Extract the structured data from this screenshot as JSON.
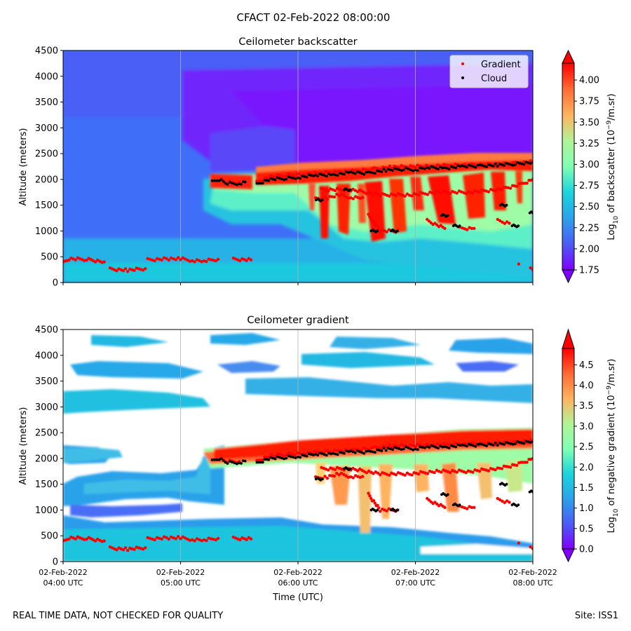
{
  "figure": {
    "suptitle": "CFACT 02-Feb-2022 08:00:00",
    "footer_left": "REAL TIME DATA, NOT CHECKED FOR QUALITY",
    "footer_right": "Site: ISS1"
  },
  "colors": {
    "colormap": "rainbow",
    "gradient_marker": "#ff0000",
    "cloud_marker": "#000000",
    "gridline": "#b0b0b0"
  },
  "chart_data": [
    {
      "type": "heatmap",
      "title": "Ceilometer backscatter",
      "ylabel": "Altitude (meters)",
      "xlabel": "",
      "xlim": [
        4,
        8
      ],
      "ylim": [
        0,
        4500
      ],
      "yticks": [
        0,
        500,
        1000,
        1500,
        2000,
        2500,
        3000,
        3500,
        4000,
        4500
      ],
      "xtick_labels_shown": false,
      "grid": "vertical",
      "colorbar": {
        "label_parts": [
          "Log",
          "10",
          " of backscatter (10",
          "−9",
          "/m.sr)"
        ],
        "min": 1.75,
        "max": 4.2,
        "ticks": [
          "1.75",
          "2.00",
          "2.25",
          "2.50",
          "2.75",
          "3.00",
          "3.25",
          "3.50",
          "3.75",
          "4.00"
        ],
        "extend": "both"
      },
      "legend": {
        "placement": "top-right",
        "entries": [
          {
            "label": "Gradient",
            "color": "#ff0000"
          },
          {
            "label": "Cloud",
            "color": "#000000"
          }
        ]
      }
    },
    {
      "type": "heatmap",
      "title": "Ceilometer gradient",
      "ylabel": "Altitude (meters)",
      "xlabel": "Time (UTC)",
      "xlim": [
        4,
        8
      ],
      "ylim": [
        0,
        4500
      ],
      "yticks": [
        0,
        500,
        1000,
        1500,
        2000,
        2500,
        3000,
        3500,
        4000,
        4500
      ],
      "xticks": [
        4,
        5,
        6,
        7,
        8
      ],
      "xtick_labels": [
        [
          "02-Feb-2022",
          "04:00 UTC"
        ],
        [
          "02-Feb-2022",
          "05:00 UTC"
        ],
        [
          "02-Feb-2022",
          "06:00 UTC"
        ],
        [
          "02-Feb-2022",
          "07:00 UTC"
        ],
        [
          "02-Feb-2022",
          "08:00 UTC"
        ]
      ],
      "grid": "vertical",
      "colorbar": {
        "label_parts": [
          "Log",
          "10",
          " of negative gradient (10",
          "−9",
          "/m.sr)"
        ],
        "min": 0.0,
        "max": 4.9,
        "ticks": [
          "0.0",
          "0.5",
          "1.0",
          "1.5",
          "2.0",
          "2.5",
          "3.0",
          "3.5",
          "4.0",
          "4.5"
        ],
        "extend": "both"
      }
    }
  ],
  "series": {
    "cloud_base": {
      "name": "Cloud",
      "segments": [
        [
          [
            5.27,
            1950
          ],
          [
            5.33,
            2000
          ],
          [
            5.4,
            1920
          ],
          [
            5.5,
            1920
          ],
          [
            5.55,
            1950
          ]
        ],
        [
          [
            5.65,
            1900
          ],
          [
            5.75,
            2000
          ],
          [
            5.9,
            2020
          ],
          [
            6.0,
            2040
          ],
          [
            6.15,
            2080
          ],
          [
            6.3,
            2090
          ],
          [
            6.45,
            2130
          ],
          [
            6.6,
            2120
          ],
          [
            6.75,
            2180
          ],
          [
            6.9,
            2200
          ],
          [
            7.0,
            2190
          ],
          [
            7.1,
            2230
          ],
          [
            7.25,
            2220
          ],
          [
            7.4,
            2250
          ],
          [
            7.55,
            2260
          ],
          [
            7.7,
            2280
          ],
          [
            7.85,
            2300
          ],
          [
            8.0,
            2330
          ]
        ]
      ],
      "isolated": [
        [
          6.18,
          1600
        ],
        [
          6.42,
          1800
        ],
        [
          6.65,
          1000
        ],
        [
          6.82,
          1000
        ],
        [
          7.25,
          1300
        ],
        [
          7.35,
          1100
        ],
        [
          7.75,
          1500
        ],
        [
          7.85,
          1100
        ],
        [
          8.0,
          1350
        ]
      ]
    },
    "gradient": {
      "name": "Gradient",
      "segments": [
        [
          [
            4.0,
            380
          ],
          [
            4.05,
            460
          ],
          [
            4.2,
            450
          ],
          [
            4.35,
            400
          ]
        ],
        [
          [
            4.4,
            260
          ],
          [
            4.55,
            240
          ],
          [
            4.7,
            270
          ]
        ],
        [
          [
            4.72,
            440
          ],
          [
            4.9,
            460
          ],
          [
            5.0,
            460
          ],
          [
            5.1,
            430
          ],
          [
            5.2,
            420
          ],
          [
            5.32,
            450
          ]
        ],
        [
          [
            5.45,
            450
          ],
          [
            5.6,
            440
          ]
        ],
        [
          [
            5.27,
            1950
          ],
          [
            5.33,
            2000
          ],
          [
            5.4,
            1940
          ],
          [
            5.5,
            1940
          ]
        ],
        [
          [
            5.65,
            1940
          ],
          [
            5.75,
            2050
          ],
          [
            5.9,
            2080
          ],
          [
            6.05,
            2100
          ],
          [
            6.2,
            2120
          ],
          [
            6.35,
            2150
          ],
          [
            6.5,
            2160
          ],
          [
            6.65,
            2200
          ],
          [
            6.8,
            2240
          ],
          [
            7.0,
            2250
          ],
          [
            7.15,
            2260
          ],
          [
            7.3,
            2270
          ],
          [
            7.5,
            2280
          ],
          [
            7.7,
            2290
          ],
          [
            7.85,
            2310
          ],
          [
            8.0,
            2340
          ]
        ],
        [
          [
            6.15,
            1620
          ],
          [
            6.25,
            1640
          ],
          [
            6.35,
            1700
          ],
          [
            6.45,
            1650
          ],
          [
            6.55,
            1650
          ]
        ],
        [
          [
            6.2,
            1800
          ],
          [
            6.45,
            1800
          ],
          [
            6.7,
            1700
          ],
          [
            6.95,
            1700
          ],
          [
            7.2,
            1750
          ],
          [
            7.45,
            1750
          ],
          [
            7.7,
            1800
          ],
          [
            7.9,
            1900
          ],
          [
            8.0,
            2000
          ]
        ],
        [
          [
            6.6,
            1300
          ],
          [
            6.7,
            1000
          ],
          [
            6.85,
            1000
          ]
        ],
        [
          [
            7.1,
            1200
          ],
          [
            7.25,
            1050
          ]
        ],
        [
          [
            7.38,
            1050
          ],
          [
            7.5,
            1050
          ]
        ],
        [
          [
            7.7,
            1200
          ],
          [
            7.8,
            1150
          ]
        ],
        [
          [
            7.88,
            360
          ]
        ],
        [
          [
            7.98,
            260
          ],
          [
            8.0,
            250
          ]
        ]
      ]
    }
  }
}
